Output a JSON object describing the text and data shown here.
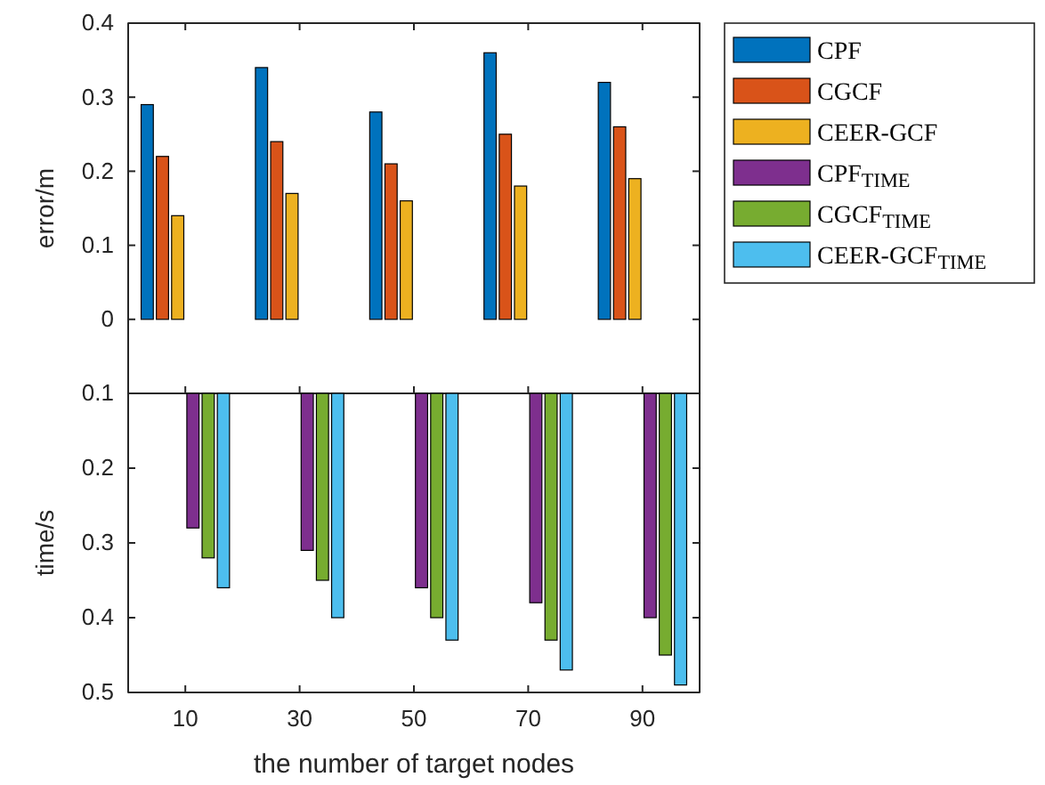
{
  "chart_data": [
    {
      "type": "bar",
      "ylabel": "error/m",
      "categories": [
        "10",
        "30",
        "50",
        "70",
        "90"
      ],
      "ylim": [
        -0.1,
        0.4
      ],
      "yticks": [
        0,
        0.1,
        0.2,
        0.3,
        0.4
      ],
      "tick_labels": "y",
      "legend": "right",
      "series": [
        {
          "name": "CPF",
          "color": "#0072bd",
          "values": [
            0.29,
            0.34,
            0.28,
            0.36,
            0.32
          ]
        },
        {
          "name": "CGCF",
          "color": "#d95319",
          "values": [
            0.22,
            0.24,
            0.21,
            0.25,
            0.26
          ]
        },
        {
          "name": "CEER-GCF",
          "color": "#edb120",
          "values": [
            0.14,
            0.17,
            0.16,
            0.18,
            0.19
          ]
        }
      ]
    },
    {
      "type": "bar",
      "ylabel": "time/s",
      "xlabel": "the number of target nodes",
      "categories": [
        "10",
        "30",
        "50",
        "70",
        "90"
      ],
      "ylim": [
        0.5,
        0.1
      ],
      "yticks": [
        0.1,
        0.2,
        0.3,
        0.4,
        0.5
      ],
      "legend": "right",
      "series": [
        {
          "name": "CPF$_{TIME}$",
          "color": "#7e2f8e",
          "values": [
            0.28,
            0.31,
            0.36,
            0.38,
            0.4
          ]
        },
        {
          "name": "CGCF$_{TIME}$",
          "color": "#77ac30",
          "values": [
            0.32,
            0.35,
            0.4,
            0.43,
            0.45
          ]
        },
        {
          "name": "CEER-GCF$_{TIME}$",
          "color": "#4dbeee",
          "values": [
            0.36,
            0.4,
            0.43,
            0.47,
            0.49
          ]
        }
      ]
    }
  ]
}
